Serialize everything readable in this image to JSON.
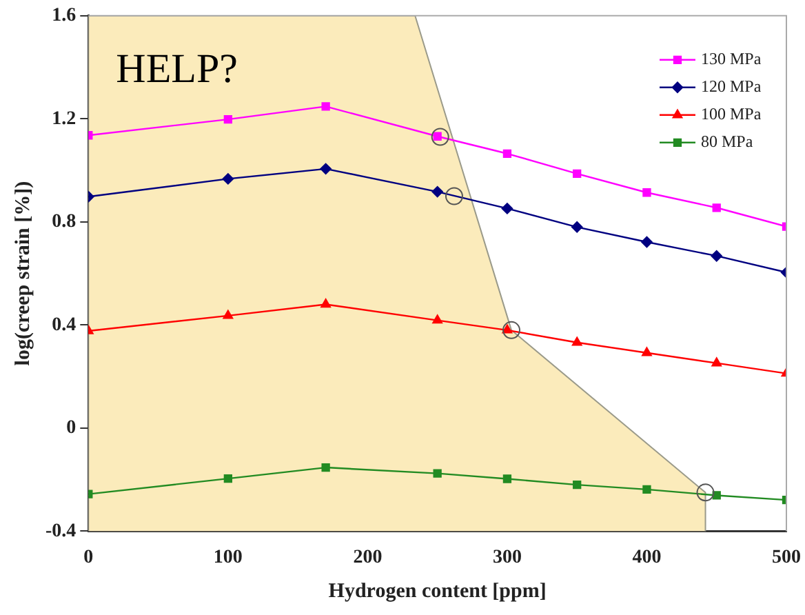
{
  "chart_data": {
    "type": "line",
    "xlabel": "Hydrogen content [ppm]",
    "ylabel": "log(creep strain [%])",
    "annotations": [
      "HELP?"
    ],
    "xlim": [
      0,
      500
    ],
    "xticks": [
      0,
      100,
      200,
      300,
      400,
      500
    ],
    "ylim": [
      -0.4,
      1.6
    ],
    "yticks": [
      -0.4,
      0,
      0.4,
      0.8,
      1.2,
      1.6
    ],
    "grid": false,
    "legend": "top right",
    "x": [
      0,
      100,
      170,
      250,
      300,
      350,
      400,
      450,
      500
    ],
    "series": [
      {
        "type": "area",
        "color": "#fbebbb",
        "x": [
          0,
          0,
          234,
          303,
          442,
          442
        ],
        "values": [
          -0.4,
          1.6,
          1.6,
          0.38,
          -0.25,
          -0.4
        ],
        "marker": "none"
      },
      {
        "type": "scatter",
        "color": "#555555",
        "x": [
          252,
          262,
          303,
          442
        ],
        "values": [
          1.13,
          0.9,
          0.38,
          -0.25
        ],
        "marker": "circle"
      },
      {
        "name": "130 MPa",
        "color": "#ff00ff",
        "marker": "square",
        "values": [
          1.136,
          1.198,
          1.248,
          1.132,
          1.065,
          0.987,
          0.914,
          0.855,
          0.782
        ]
      },
      {
        "name": "120 MPa",
        "color": "#000080",
        "marker": "diamond",
        "values": [
          0.898,
          0.967,
          1.006,
          0.917,
          0.852,
          0.78,
          0.722,
          0.668,
          0.604
        ]
      },
      {
        "name": "100 MPa",
        "color": "#ff0000",
        "marker": "triangle",
        "values": [
          0.377,
          0.436,
          0.48,
          0.418,
          0.38,
          0.332,
          0.292,
          0.252,
          0.212
        ]
      },
      {
        "name": "80 MPa",
        "color": "#228b22",
        "marker": "square",
        "values": [
          -0.256,
          -0.196,
          -0.153,
          -0.176,
          -0.197,
          -0.22,
          -0.238,
          -0.261,
          -0.279
        ]
      }
    ]
  }
}
